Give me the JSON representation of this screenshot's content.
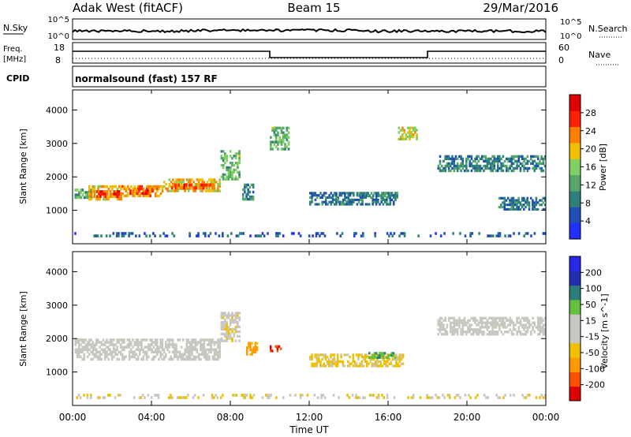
{
  "header": {
    "station": "Adak West (fitACF)",
    "beam": "Beam 15",
    "date": "29/Mar/2016"
  },
  "strips": {
    "nsky": {
      "label": "N.Sky",
      "ticks": [
        "10^5",
        "10^0"
      ]
    },
    "nsearch": {
      "label": "N.Search",
      "ticks": [
        "10^5",
        "10^0"
      ]
    },
    "freq": {
      "label": "Freq.",
      "unit": "[MHz]",
      "ticks": [
        "18",
        "8"
      ]
    },
    "nave": {
      "label": "Nave",
      "ticks": [
        "60",
        "0"
      ]
    },
    "cpid": {
      "label": "CPID",
      "text": "normalsound (fast) 157 RF"
    }
  },
  "colors": {
    "power": [
      "#2030ff",
      "#1f4fb4",
      "#2f7f7a",
      "#55a86a",
      "#7fd060",
      "#f0c000",
      "#ff8000",
      "#ff2000",
      "#e00000"
    ],
    "velocity": [
      "#e00000",
      "#ff5000",
      "#ff9a00",
      "#f0c000",
      "#c8c8c0",
      "#c8c8c0",
      "#66c040",
      "#2a7f7a",
      "#2030b0",
      "#2828e8"
    ],
    "velocity_gray": "#c8c8c0",
    "frame": "#000000"
  },
  "chart_data": [
    {
      "type": "heatmap",
      "name": "Power",
      "xlabel": "",
      "ylabel": "Slant Range [km]",
      "xlim": [
        0,
        24
      ],
      "ylim": [
        0,
        4600
      ],
      "yticks": [
        "1000",
        "2000",
        "3000",
        "4000"
      ],
      "colorbar": {
        "label": "Power [dB]",
        "ticks": [
          "4",
          "8",
          "12",
          "16",
          "20",
          "24",
          "28"
        ],
        "range": [
          0,
          32
        ]
      },
      "features": [
        {
          "t": [
            0.1,
            1.0
          ],
          "r": [
            1350,
            1650
          ],
          "v": 12
        },
        {
          "t": [
            0.8,
            2.5
          ],
          "r": [
            1300,
            1750
          ],
          "v": 20
        },
        {
          "t": [
            1.2,
            2.4
          ],
          "r": [
            1380,
            1600
          ],
          "v": 27
        },
        {
          "t": [
            2.4,
            4.6
          ],
          "r": [
            1400,
            1750
          ],
          "v": 22
        },
        {
          "t": [
            2.8,
            4.2
          ],
          "r": [
            1470,
            1620
          ],
          "v": 26
        },
        {
          "t": [
            4.6,
            7.5
          ],
          "r": [
            1550,
            1950
          ],
          "v": 20
        },
        {
          "t": [
            5.0,
            7.2
          ],
          "r": [
            1630,
            1800
          ],
          "v": 25
        },
        {
          "t": [
            7.5,
            8.5
          ],
          "r": [
            1900,
            2800
          ],
          "v": 14
        },
        {
          "t": [
            8.6,
            9.2
          ],
          "r": [
            1300,
            1800
          ],
          "v": 9
        },
        {
          "t": [
            10.0,
            11.0
          ],
          "r": [
            2800,
            3500
          ],
          "v": 14
        },
        {
          "t": [
            12.0,
            16.5
          ],
          "r": [
            1150,
            1550
          ],
          "v": 8
        },
        {
          "t": [
            14.5,
            16.5
          ],
          "r": [
            1400,
            1550
          ],
          "v": 10
        },
        {
          "t": [
            16.5,
            17.5
          ],
          "r": [
            3100,
            3500
          ],
          "v": 18
        },
        {
          "t": [
            18.5,
            24.0
          ],
          "r": [
            2150,
            2650
          ],
          "v": 9
        },
        {
          "t": [
            21.5,
            24.0
          ],
          "r": [
            1000,
            1400
          ],
          "v": 8
        },
        {
          "t": [
            0.0,
            24.0
          ],
          "r": [
            200,
            350
          ],
          "v": 6
        }
      ]
    },
    {
      "type": "heatmap",
      "name": "Velocity",
      "xlabel": "Time UT",
      "ylabel": "Slant Range [km]",
      "xlim": [
        0,
        24
      ],
      "ylim": [
        0,
        4600
      ],
      "xticks": [
        "00:00",
        "04:00",
        "08:00",
        "12:00",
        "16:00",
        "20:00",
        "00:00"
      ],
      "yticks": [
        "1000",
        "2000",
        "3000",
        "4000"
      ],
      "colorbar": {
        "label": "Velocity [m s^-1]",
        "ticks": [
          "200",
          "100",
          "50",
          "15",
          "-15",
          "-50",
          "-100",
          "-200"
        ],
        "range": [
          -250,
          250
        ]
      },
      "features": [
        {
          "t": [
            0.1,
            7.5
          ],
          "r": [
            1350,
            2000
          ],
          "v": 0
        },
        {
          "t": [
            7.5,
            8.5
          ],
          "r": [
            1900,
            2800
          ],
          "v": -30
        },
        {
          "t": [
            8.8,
            9.4
          ],
          "r": [
            1500,
            1900
          ],
          "v": -120
        },
        {
          "t": [
            10.0,
            10.6
          ],
          "r": [
            1600,
            1800
          ],
          "v": -200
        },
        {
          "t": [
            12.0,
            16.8
          ],
          "r": [
            1150,
            1550
          ],
          "v": -60
        },
        {
          "t": [
            15.0,
            16.4
          ],
          "r": [
            1400,
            1600
          ],
          "v": 80
        },
        {
          "t": [
            18.5,
            24.0
          ],
          "r": [
            2100,
            2650
          ],
          "v": 0
        },
        {
          "t": [
            0.0,
            24.0
          ],
          "r": [
            200,
            350
          ],
          "v": -40
        }
      ]
    }
  ]
}
